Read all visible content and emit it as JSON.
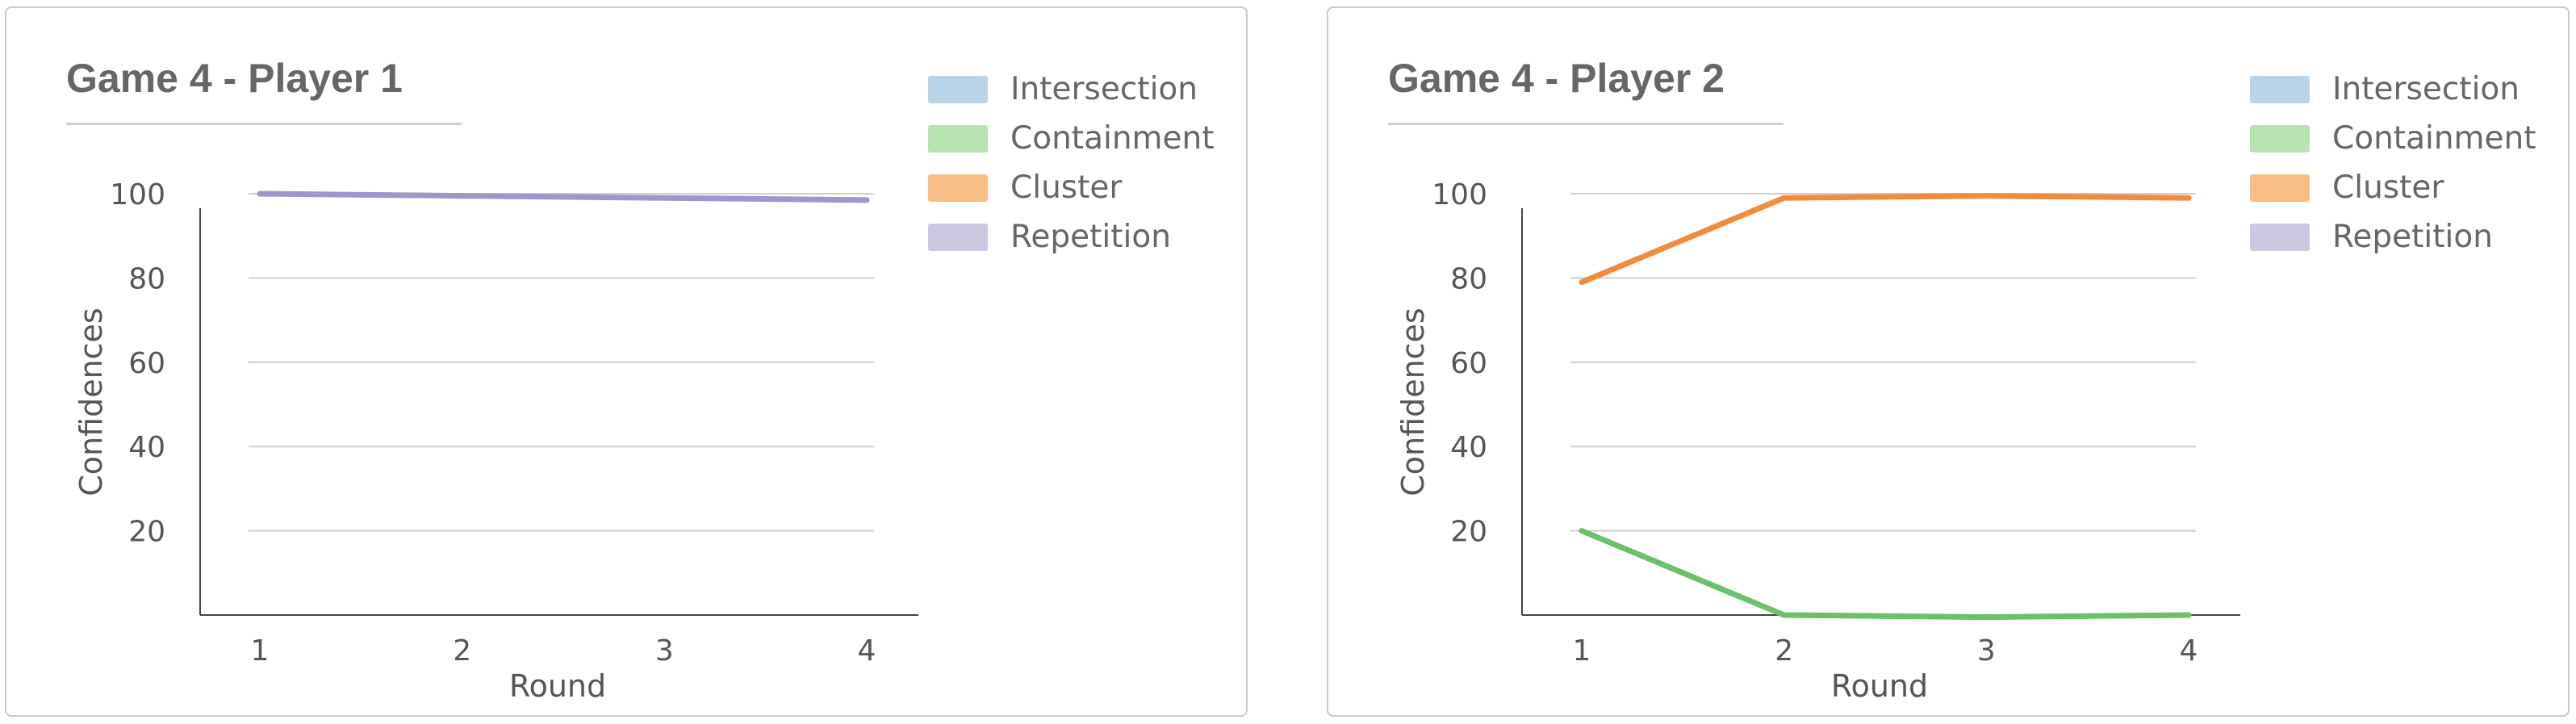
{
  "charts": [
    {
      "title": "Game 4 - Player 1",
      "legend": [
        {
          "label": "Intersection",
          "color": "#b9d4e8"
        },
        {
          "label": "Containment",
          "color": "#b6e3b0"
        },
        {
          "label": "Cluster",
          "color": "#f9bd86"
        },
        {
          "label": "Repetition",
          "color": "#cdc7e2"
        }
      ]
    },
    {
      "title": "Game 4 - Player 2",
      "legend": [
        {
          "label": "Intersection",
          "color": "#b9d4e8"
        },
        {
          "label": "Containment",
          "color": "#b6e3b0"
        },
        {
          "label": "Cluster",
          "color": "#f9bd86"
        },
        {
          "label": "Repetition",
          "color": "#cdc7e2"
        }
      ]
    }
  ],
  "chart_data": [
    {
      "type": "line",
      "title": "Game 4 - Player 1",
      "xlabel": "Round",
      "ylabel": "Confidences",
      "x": [
        1,
        2,
        3,
        4
      ],
      "xticks": [
        "1",
        "2",
        "3",
        "4"
      ],
      "yticks": [
        "20",
        "40",
        "60",
        "80",
        "100"
      ],
      "ylim": [
        0,
        100
      ],
      "grid": true,
      "legend_position": "top-right",
      "series": [
        {
          "name": "Repetition",
          "color": "#9f96cc",
          "values": [
            100,
            99.5,
            99,
            98.5
          ]
        }
      ]
    },
    {
      "type": "line",
      "title": "Game 4 - Player 2",
      "xlabel": "Round",
      "ylabel": "Confidences",
      "x": [
        1,
        2,
        3,
        4
      ],
      "xticks": [
        "1",
        "2",
        "3",
        "4"
      ],
      "yticks": [
        "20",
        "40",
        "60",
        "80",
        "100"
      ],
      "ylim": [
        0,
        100
      ],
      "grid": true,
      "legend_position": "top-right",
      "series": [
        {
          "name": "Cluster",
          "color": "#f28c3c",
          "values": [
            79,
            99,
            99.5,
            99
          ]
        },
        {
          "name": "Containment",
          "color": "#6cc06a",
          "values": [
            20,
            0,
            -0.5,
            0
          ]
        }
      ]
    }
  ]
}
